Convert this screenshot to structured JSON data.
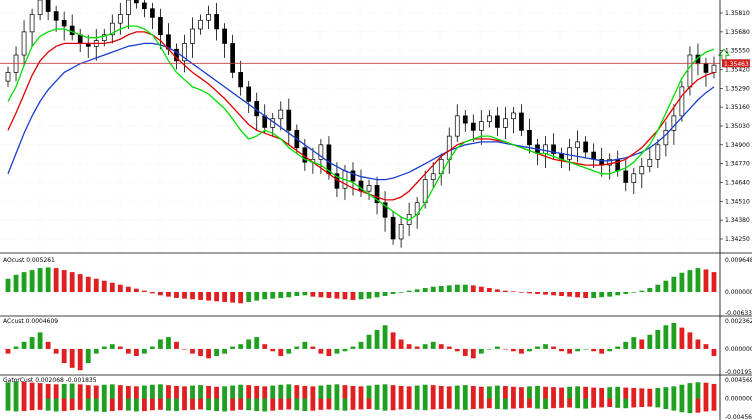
{
  "colors": {
    "background": "#ffffff",
    "grid": "#e4e4e4",
    "axis": "#000000",
    "candle": "#000000",
    "ma_fast": "#00e000",
    "ma_mid": "#e00000",
    "ma_slow": "#1a3fd0",
    "bull": "#20a020",
    "bear": "#e02020",
    "price_line": "#c04040",
    "price_badge": "#d02020",
    "signal_arrow": "#20b020"
  },
  "main_panel": {
    "price_ticks": [
      "1.35810",
      "1.35680",
      "1.35550",
      "1.35420",
      "1.35290",
      "1.35160",
      "1.35030",
      "1.34900",
      "1.34770",
      "1.34640",
      "1.34510",
      "1.34380",
      "1.34250"
    ],
    "price_range": [
      1.3416,
      1.359
    ],
    "current_price": "1.35463",
    "current_price_value": 1.35463
  },
  "indicators": [
    {
      "name": "AOcust",
      "label": "AOcust 0.005261",
      "ticks": [
        "0.009648",
        "0.000000",
        "-0.006335"
      ],
      "kind": "colored"
    },
    {
      "name": "ACcust",
      "label": "ACcust 0.0004609",
      "ticks": [
        "0.0023621",
        "0.000000",
        "-0.0019530"
      ],
      "kind": "colored"
    },
    {
      "name": "GatorCust",
      "label": "GatorCust 0.002068 -0.001835",
      "ticks": [
        "0.004569",
        "0.000000",
        "-0.004569"
      ],
      "kind": "gator"
    }
  ],
  "chart_data": {
    "type": "candlestick",
    "series_close": [
      1.354,
      1.3552,
      1.3568,
      1.358,
      1.359,
      1.3582,
      1.3576,
      1.3572,
      1.3566,
      1.356,
      1.3558,
      1.3562,
      1.3566,
      1.3574,
      1.358,
      1.359,
      1.3588,
      1.3584,
      1.3578,
      1.3566,
      1.3556,
      1.3548,
      1.356,
      1.357,
      1.3576,
      1.358,
      1.357,
      1.356,
      1.354,
      1.353,
      1.352,
      1.351,
      1.3502,
      1.3508,
      1.3514,
      1.35,
      1.3488,
      1.3478,
      1.348,
      1.349,
      1.347,
      1.346,
      1.3472,
      1.3465,
      1.3458,
      1.3462,
      1.345,
      1.344,
      1.3425,
      1.3435,
      1.3442,
      1.345,
      1.3466,
      1.347,
      1.348,
      1.3496,
      1.351,
      1.3505,
      1.35,
      1.3506,
      1.351,
      1.3502,
      1.3508,
      1.3512,
      1.35,
      1.349,
      1.3484,
      1.349,
      1.3484,
      1.348,
      1.3488,
      1.3492,
      1.3485,
      1.348,
      1.3476,
      1.348,
      1.3472,
      1.3464,
      1.347,
      1.3475,
      1.348,
      1.349,
      1.35,
      1.351,
      1.353,
      1.3552,
      1.3546,
      1.354,
      1.3545
    ],
    "ma_fast": [
      1.352,
      1.353,
      1.3545,
      1.3558,
      1.3565,
      1.3568,
      1.357,
      1.357,
      1.3568,
      1.3566,
      1.3564,
      1.3564,
      1.3565,
      1.3567,
      1.357,
      1.3572,
      1.3572,
      1.357,
      1.3566,
      1.3558,
      1.3548,
      1.354,
      1.3535,
      1.353,
      1.3528,
      1.3525,
      1.352,
      1.3515,
      1.3508,
      1.35,
      1.3494,
      1.3496,
      1.35,
      1.3498,
      1.3494,
      1.3488,
      1.3484,
      1.348,
      1.3478,
      1.3476,
      1.3472,
      1.3468,
      1.3466,
      1.3464,
      1.346,
      1.3456,
      1.3452,
      1.3448,
      1.3444,
      1.344,
      1.3438,
      1.3442,
      1.345,
      1.346,
      1.347,
      1.348,
      1.3488,
      1.3492,
      1.3494,
      1.3496,
      1.3496,
      1.3494,
      1.3492,
      1.349,
      1.3488,
      1.3486,
      1.3484,
      1.3484,
      1.3482,
      1.348,
      1.3478,
      1.3476,
      1.3474,
      1.3472,
      1.347,
      1.347,
      1.3472,
      1.3474,
      1.3478,
      1.3484,
      1.349,
      1.35,
      1.3512,
      1.3524,
      1.3536,
      1.3544,
      1.355,
      1.3554,
      1.3556
    ],
    "ma_mid": [
      1.35,
      1.3512,
      1.3525,
      1.3538,
      1.3548,
      1.3554,
      1.3558,
      1.356,
      1.356,
      1.356,
      1.356,
      1.356,
      1.356,
      1.3561,
      1.3563,
      1.3566,
      1.3568,
      1.3568,
      1.3566,
      1.3562,
      1.3556,
      1.355,
      1.3545,
      1.354,
      1.3536,
      1.3532,
      1.3527,
      1.3522,
      1.3516,
      1.351,
      1.3504,
      1.35,
      1.3498,
      1.3496,
      1.3494,
      1.349,
      1.3486,
      1.3482,
      1.3478,
      1.3474,
      1.347,
      1.3466,
      1.3463,
      1.346,
      1.3458,
      1.3456,
      1.3454,
      1.3452,
      1.3452,
      1.3454,
      1.3458,
      1.3464,
      1.347,
      1.3476,
      1.3482,
      1.3486,
      1.349,
      1.3492,
      1.3494,
      1.3494,
      1.3494,
      1.3493,
      1.3492,
      1.349,
      1.3488,
      1.3486,
      1.3484,
      1.3482,
      1.348,
      1.3479,
      1.3478,
      1.3477,
      1.3476,
      1.3476,
      1.3476,
      1.3477,
      1.3478,
      1.348,
      1.3484,
      1.3488,
      1.3494,
      1.35,
      1.3508,
      1.3516,
      1.3524,
      1.353,
      1.3535,
      1.3538,
      1.354
    ],
    "ma_slow": [
      1.347,
      1.3484,
      1.3498,
      1.351,
      1.352,
      1.3528,
      1.3534,
      1.354,
      1.3543,
      1.3546,
      1.3548,
      1.355,
      1.3552,
      1.3554,
      1.3556,
      1.3558,
      1.3559,
      1.356,
      1.356,
      1.3559,
      1.3557,
      1.3554,
      1.355,
      1.3546,
      1.3542,
      1.3538,
      1.3534,
      1.353,
      1.3526,
      1.3522,
      1.3518,
      1.3514,
      1.351,
      1.3506,
      1.3502,
      1.3498,
      1.3494,
      1.349,
      1.3486,
      1.3482,
      1.3478,
      1.3475,
      1.3472,
      1.347,
      1.3468,
      1.3467,
      1.3466,
      1.3466,
      1.3467,
      1.3469,
      1.3471,
      1.3474,
      1.3477,
      1.348,
      1.3483,
      1.3486,
      1.3488,
      1.349,
      1.3491,
      1.3492,
      1.3492,
      1.3492,
      1.3491,
      1.349,
      1.3489,
      1.3488,
      1.3487,
      1.3486,
      1.3485,
      1.3484,
      1.3483,
      1.3482,
      1.3481,
      1.348,
      1.3479,
      1.3479,
      1.348,
      1.3481,
      1.3483,
      1.3485,
      1.3488,
      1.3492,
      1.3497,
      1.3503,
      1.3509,
      1.3515,
      1.3521,
      1.3526,
      1.353
    ],
    "ao": [
      0.004,
      0.0052,
      0.006,
      0.0066,
      0.0072,
      0.0074,
      0.0072,
      0.0066,
      0.006,
      0.0054,
      0.0046,
      0.004,
      0.0034,
      0.0028,
      0.0022,
      0.0016,
      0.001,
      0.0004,
      -0.0004,
      -0.001,
      -0.0014,
      -0.0018,
      -0.002,
      -0.0022,
      -0.0024,
      -0.0026,
      -0.0028,
      -0.003,
      -0.0032,
      -0.0034,
      -0.003,
      -0.0026,
      -0.0022,
      -0.002,
      -0.0018,
      -0.0016,
      -0.0012,
      -0.001,
      -0.0014,
      -0.0016,
      -0.0018,
      -0.002,
      -0.0022,
      -0.0024,
      -0.0022,
      -0.002,
      -0.0016,
      -0.0012,
      -0.0006,
      -0.0002,
      0.0004,
      0.0008,
      0.0012,
      0.0016,
      0.0018,
      0.002,
      0.0022,
      0.0022,
      0.002,
      0.0016,
      0.0012,
      0.0008,
      0.0004,
      0.0002,
      -0.0002,
      -0.0004,
      -0.0006,
      -0.0008,
      -0.001,
      -0.0012,
      -0.0014,
      -0.0016,
      -0.0018,
      -0.0018,
      -0.0016,
      -0.0014,
      -0.001,
      -0.0006,
      -0.0002,
      0.0004,
      0.0012,
      0.0022,
      0.0034,
      0.0046,
      0.0058,
      0.0066,
      0.0072,
      0.0068,
      0.006
    ],
    "ac": [
      -0.0004,
      0.0002,
      0.0006,
      0.001,
      0.0014,
      0.0006,
      -0.0004,
      -0.0012,
      -0.0016,
      -0.0018,
      -0.0012,
      -0.0004,
      0.0002,
      0.0004,
      0.0002,
      -0.0004,
      -0.0006,
      -0.0004,
      0.0002,
      0.0008,
      0.001,
      0.0006,
      0.0,
      -0.0004,
      -0.0006,
      -0.0008,
      -0.0006,
      -0.0004,
      0.0002,
      0.0004,
      0.0008,
      0.001,
      0.0004,
      -0.0002,
      -0.0006,
      -0.0004,
      0.0002,
      0.0006,
      0.0002,
      -0.0004,
      -0.0006,
      -0.0004,
      -0.0002,
      0.0002,
      0.0006,
      0.0012,
      0.0016,
      0.002,
      0.0014,
      0.0008,
      0.0004,
      0.0002,
      0.0004,
      0.0006,
      0.0004,
      0.0002,
      -0.0002,
      -0.0006,
      -0.0008,
      -0.0004,
      0.0,
      0.0002,
      0.0,
      -0.0002,
      -0.0004,
      -0.0002,
      0.0002,
      0.0004,
      0.0002,
      -0.0002,
      -0.0004,
      -0.0002,
      0.0,
      -0.0002,
      -0.0004,
      -0.0002,
      0.0002,
      0.0006,
      0.001,
      0.0008,
      0.0012,
      0.0016,
      0.002,
      0.0022,
      0.0018,
      0.0014,
      0.0008,
      0.0004,
      -0.0006
    ],
    "gator_up": [
      0.004,
      0.0042,
      0.0041,
      0.0039,
      0.0038,
      0.0036,
      0.0035,
      0.0036,
      0.0037,
      0.0035,
      0.0033,
      0.0032,
      0.0034,
      0.0035,
      0.0033,
      0.0031,
      0.003,
      0.0032,
      0.0034,
      0.0035,
      0.0033,
      0.0031,
      0.003,
      0.0032,
      0.0033,
      0.0031,
      0.0029,
      0.003,
      0.0032,
      0.0034,
      0.0033,
      0.0031,
      0.003,
      0.0032,
      0.0034,
      0.0035,
      0.0033,
      0.0031,
      0.003,
      0.0032,
      0.0034,
      0.0035,
      0.0033,
      0.0031,
      0.003,
      0.0032,
      0.0034,
      0.0035,
      0.0033,
      0.0031,
      0.003,
      0.0032,
      0.0034,
      0.0033,
      0.0031,
      0.003,
      0.0032,
      0.0033,
      0.0031,
      0.0029,
      0.003,
      0.0032,
      0.0031,
      0.0029,
      0.0028,
      0.003,
      0.0031,
      0.0029,
      0.0028,
      0.0027,
      0.0029,
      0.003,
      0.0029,
      0.0027,
      0.0026,
      0.0028,
      0.0029,
      0.0027,
      0.0026,
      0.0025,
      0.0024,
      0.0026,
      0.0028,
      0.003,
      0.0034,
      0.0038,
      0.004,
      0.0039,
      0.0036
    ],
    "gator_down": [
      -0.003,
      -0.0032,
      -0.0031,
      -0.0029,
      -0.0028,
      -0.003,
      -0.0032,
      -0.0031,
      -0.0029,
      -0.0028,
      -0.003,
      -0.0032,
      -0.0033,
      -0.0031,
      -0.0029,
      -0.003,
      -0.0032,
      -0.0031,
      -0.0029,
      -0.0028,
      -0.003,
      -0.0031,
      -0.0029,
      -0.0028,
      -0.0027,
      -0.0029,
      -0.0031,
      -0.0032,
      -0.003,
      -0.0028,
      -0.0029,
      -0.0031,
      -0.0032,
      -0.003,
      -0.0028,
      -0.0027,
      -0.0029,
      -0.0031,
      -0.003,
      -0.0028,
      -0.0027,
      -0.0029,
      -0.003,
      -0.0028,
      -0.0027,
      -0.0026,
      -0.0028,
      -0.003,
      -0.0029,
      -0.0027,
      -0.0026,
      -0.0028,
      -0.0029,
      -0.0027,
      -0.0026,
      -0.0025,
      -0.0027,
      -0.0028,
      -0.0026,
      -0.0025,
      -0.0024,
      -0.0026,
      -0.0027,
      -0.0025,
      -0.0024,
      -0.0023,
      -0.0025,
      -0.0026,
      -0.0024,
      -0.0023,
      -0.0022,
      -0.0024,
      -0.0025,
      -0.0023,
      -0.0022,
      -0.0021,
      -0.0023,
      -0.0024,
      -0.0022,
      -0.0021,
      -0.002,
      -0.0022,
      -0.0026,
      -0.003,
      -0.0034,
      -0.0036,
      -0.0035,
      -0.0032,
      -0.003
    ]
  }
}
